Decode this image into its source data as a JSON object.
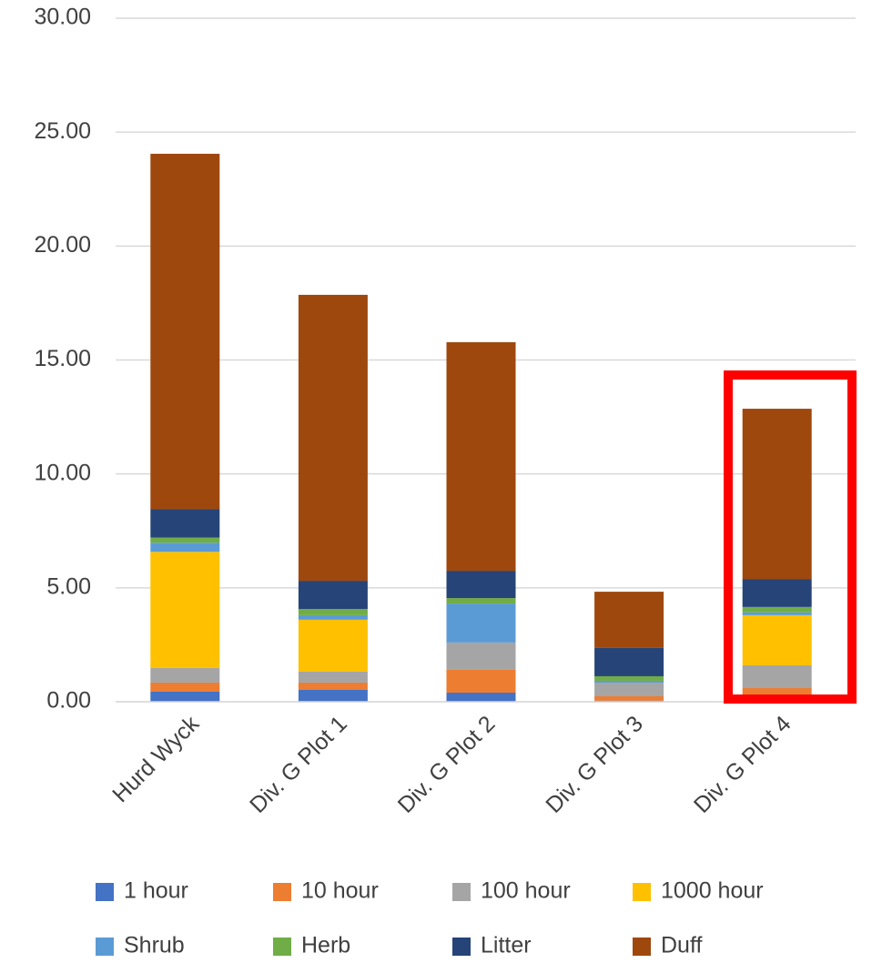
{
  "chart_data": {
    "type": "stacked_bar",
    "categories": [
      "Hurd Wyck",
      "Div. G Plot 1",
      "Div. G Plot 2",
      "Div. G Plot 3",
      "Div. G Plot 4"
    ],
    "series": [
      {
        "name": "1 hour",
        "color": "#4472c4",
        "values": [
          0.44,
          0.52,
          0.4,
          0.05,
          0.05
        ]
      },
      {
        "name": "10 hour",
        "color": "#ed7d31",
        "values": [
          0.4,
          0.32,
          1.0,
          0.19,
          0.55
        ]
      },
      {
        "name": "100 hour",
        "color": "#a5a5a5",
        "values": [
          0.64,
          0.48,
          1.2,
          0.6,
          1.0
        ]
      },
      {
        "name": "1000 hour",
        "color": "#ffc000",
        "values": [
          5.1,
          2.28,
          0,
          0,
          2.2
        ]
      },
      {
        "name": "Shrub",
        "color": "#5b9bd5",
        "values": [
          0.4,
          0.2,
          1.71,
          0.08,
          0.12
        ]
      },
      {
        "name": "Herb",
        "color": "#70ad47",
        "values": [
          0.23,
          0.27,
          0.24,
          0.2,
          0.24
        ]
      },
      {
        "name": "Litter",
        "color": "#264478",
        "values": [
          1.24,
          1.24,
          1.2,
          1.24,
          1.23
        ]
      },
      {
        "name": "Duff",
        "color": "#9e480e",
        "values": [
          15.6,
          12.55,
          10.03,
          2.47,
          7.47
        ]
      }
    ],
    "ylim": [
      0,
      30
    ],
    "yticks": [
      {
        "value": 0,
        "label": "0.00"
      },
      {
        "value": 5,
        "label": "5.00"
      },
      {
        "value": 10,
        "label": "10.00"
      },
      {
        "value": 15,
        "label": "15.00"
      },
      {
        "value": 20,
        "label": "20.00"
      },
      {
        "value": 25,
        "label": "25.00"
      },
      {
        "value": 30,
        "label": "30.00"
      }
    ],
    "grid": true,
    "legend": "bottom"
  }
}
